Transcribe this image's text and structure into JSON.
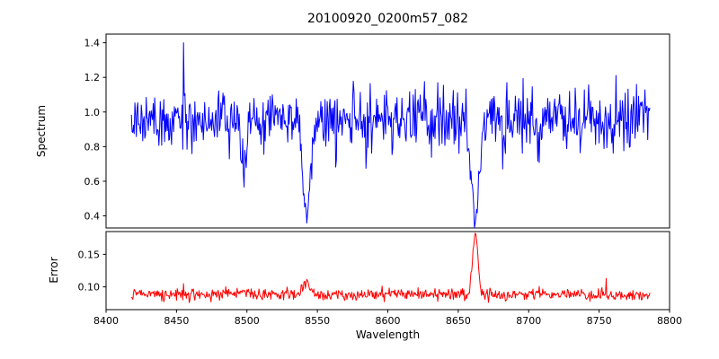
{
  "figure": {
    "title": "20100920_0200m57_082",
    "xlabel": "Wavelength",
    "background_color": "#ffffff",
    "axis_color": "#000000"
  },
  "chart_data": [
    {
      "type": "line",
      "panel": "spectrum",
      "ylabel": "Spectrum",
      "color": "#0000ff",
      "xlim": [
        8400,
        8800
      ],
      "ylim": [
        0.33,
        1.45
      ],
      "yticks": [
        0.4,
        0.6,
        0.8,
        1.0,
        1.2,
        1.4
      ],
      "ytick_labels": [
        "0.4",
        "0.6",
        "0.8",
        "1.0",
        "1.2",
        "1.4"
      ],
      "show_xticks": false,
      "grid": false,
      "legend": null,
      "x_start": 8418,
      "x_end": 8786,
      "x_step": 0.5,
      "baseline": 0.95,
      "noise_sigma": 0.088,
      "absorption_lines": [
        {
          "center": 8498.0,
          "depth": 0.35,
          "width": 2.0
        },
        {
          "center": 8542.1,
          "depth": 0.58,
          "width": 2.6
        },
        {
          "center": 8662.1,
          "depth": 0.6,
          "width": 2.6
        }
      ],
      "spikes": [
        {
          "x": 8455,
          "value": 1.4
        }
      ]
    },
    {
      "type": "line",
      "panel": "error",
      "ylabel": "Error",
      "color": "#ff0000",
      "xlim": [
        8400,
        8800
      ],
      "ylim": [
        0.065,
        0.185
      ],
      "yticks": [
        0.1,
        0.15
      ],
      "ytick_labels": [
        "0.10",
        "0.15"
      ],
      "show_xticks": true,
      "xticks": [
        8400,
        8450,
        8500,
        8550,
        8600,
        8650,
        8700,
        8750,
        8800
      ],
      "xtick_labels": [
        "8400",
        "8450",
        "8500",
        "8550",
        "8600",
        "8650",
        "8700",
        "8750",
        "8800"
      ],
      "grid": false,
      "legend": null,
      "x_start": 8418,
      "x_end": 8786,
      "x_step": 0.5,
      "baseline": 0.088,
      "noise_sigma": 0.0045,
      "bumps": [
        {
          "center": 8498.0,
          "amp": 0.008,
          "width": 2.5
        },
        {
          "center": 8542.1,
          "amp": 0.022,
          "width": 2.5
        },
        {
          "center": 8662.1,
          "amp": 0.095,
          "width": 1.8
        }
      ],
      "spikes": [
        {
          "x": 8455,
          "value": 0.105
        },
        {
          "x": 8755,
          "value": 0.113
        }
      ]
    }
  ],
  "render": {
    "seed": 82
  }
}
